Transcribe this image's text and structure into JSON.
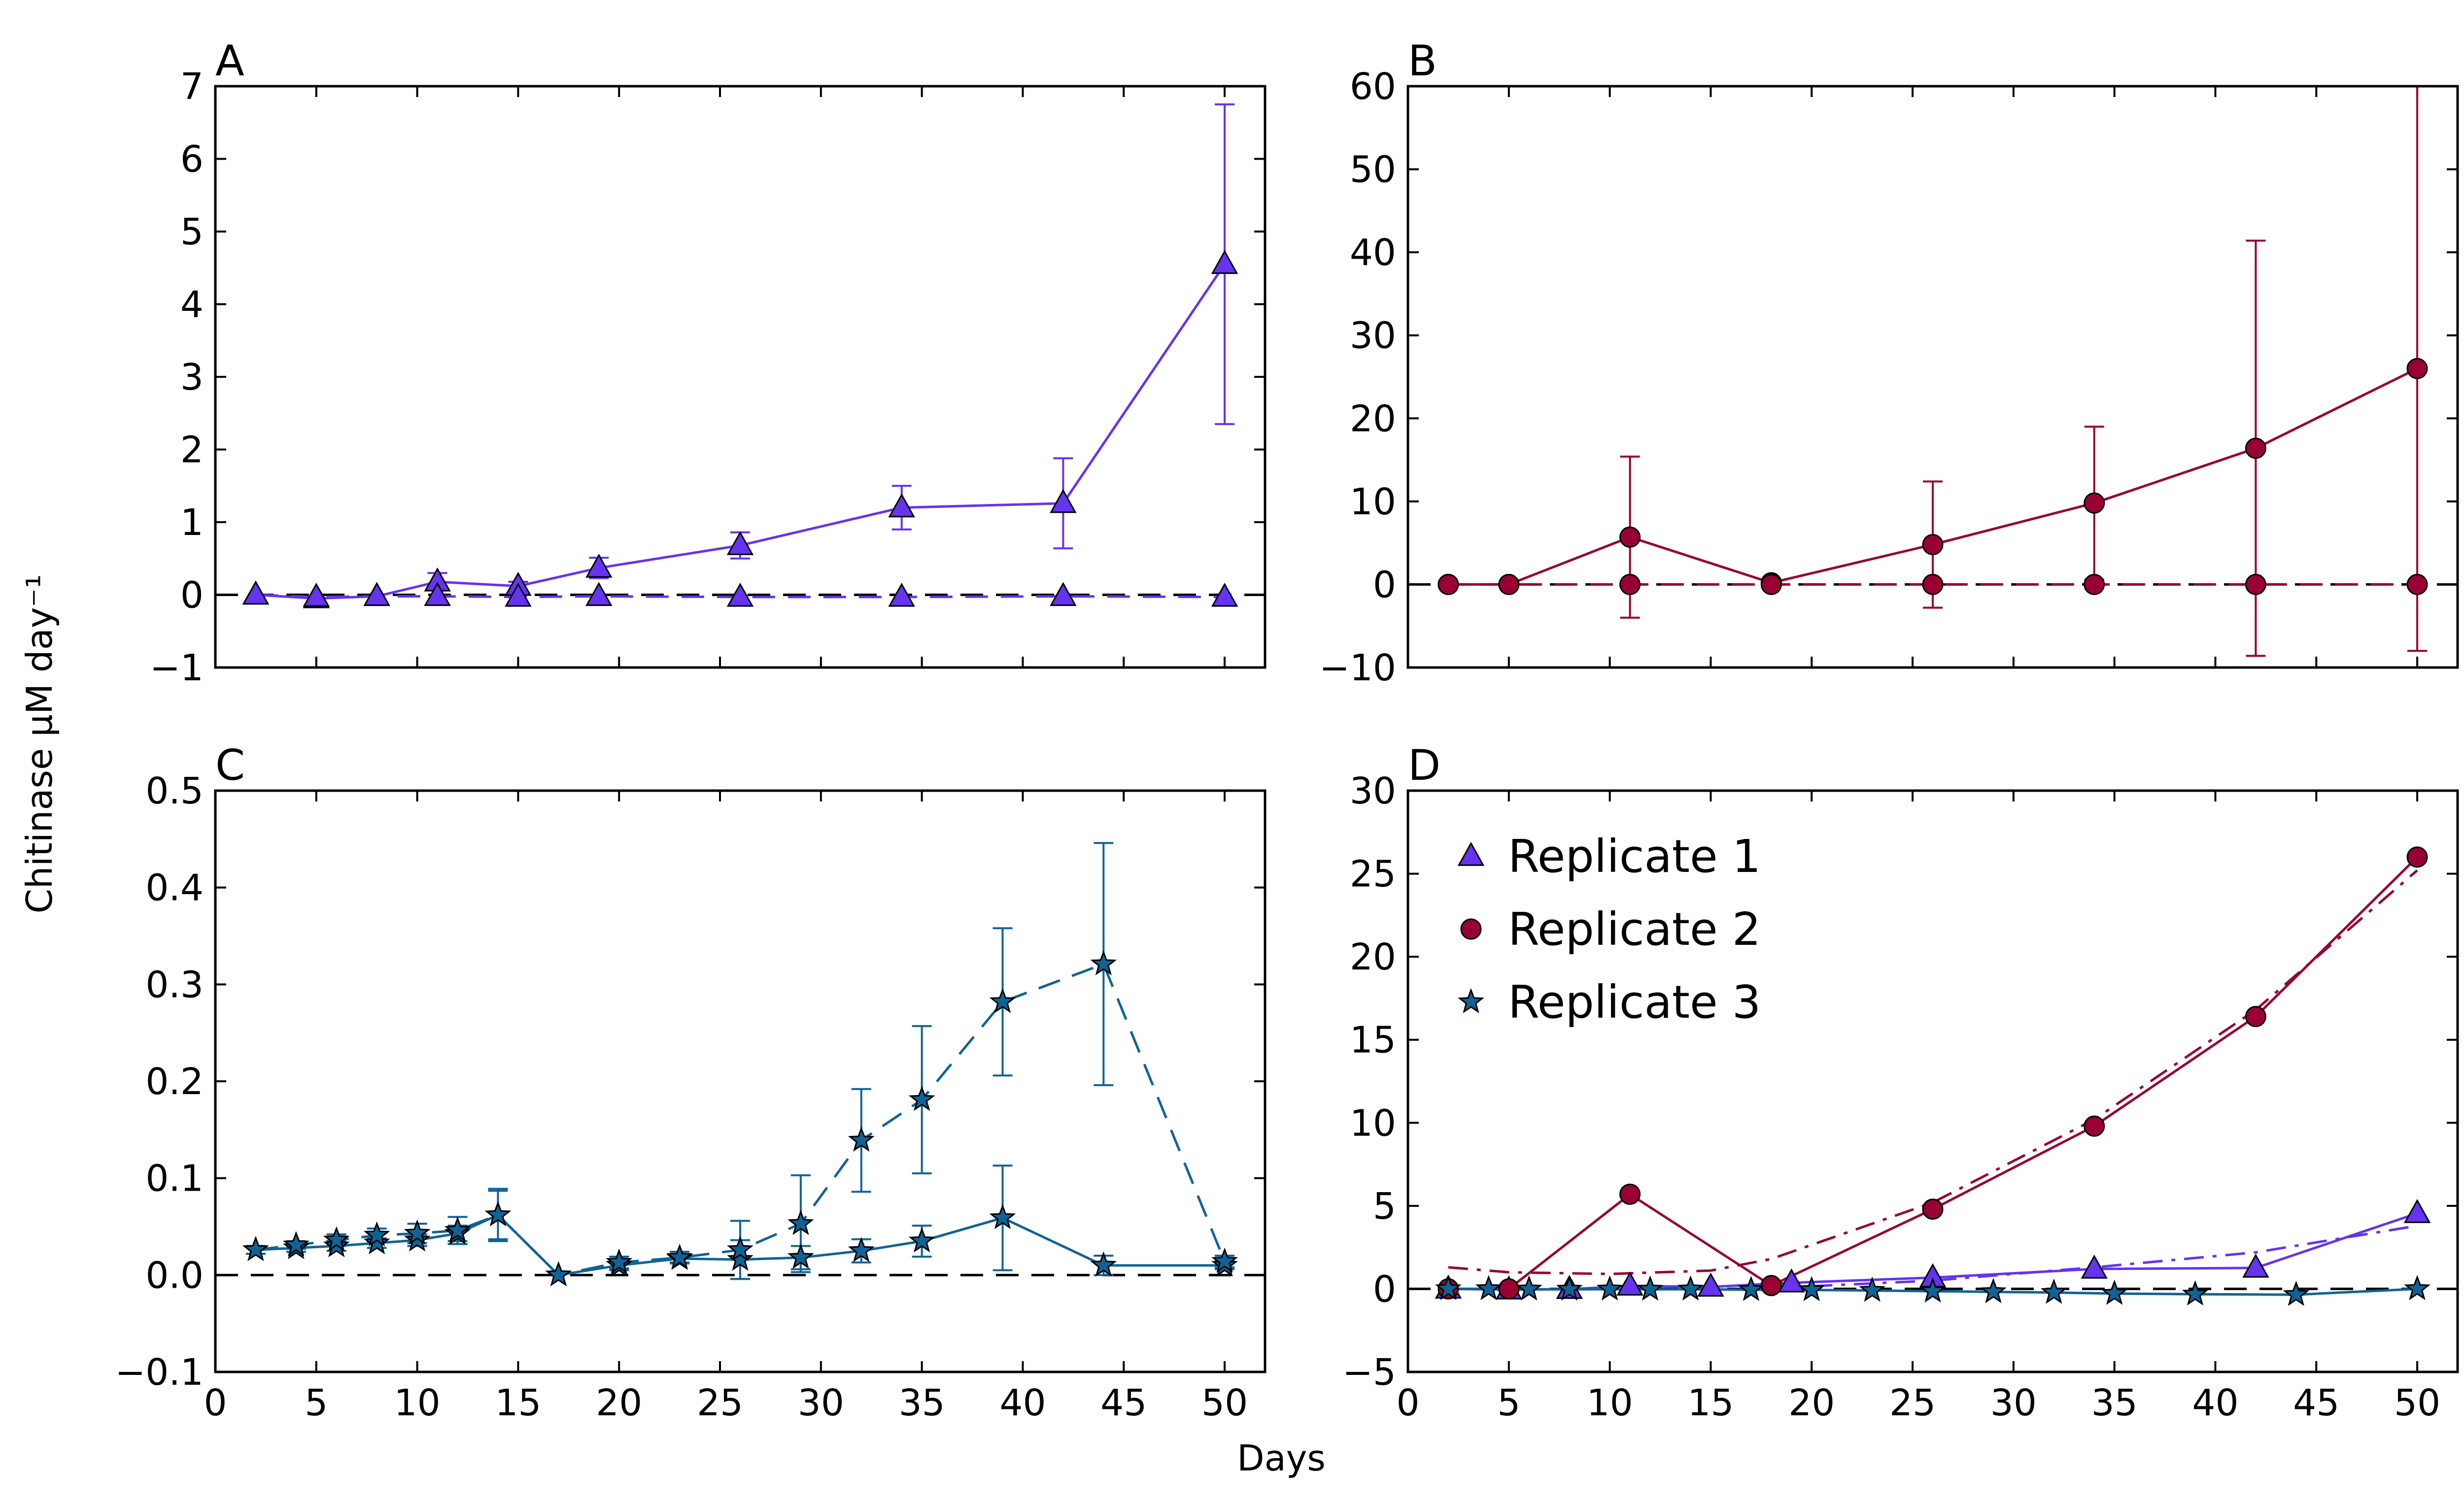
{
  "figure": {
    "ylabel": "Chitinase μM day⁻¹",
    "xlabel": "Days"
  },
  "colors": {
    "replicate_1": "#6633EE",
    "replicate_2": "#990033",
    "replicate_3": "#0F6396",
    "zero_line": "#000000"
  },
  "legend": {
    "items": [
      {
        "label": "Replicate 1",
        "marker": "triangle",
        "color": "#6633EE"
      },
      {
        "label": "Replicate 2",
        "marker": "circle",
        "color": "#990033"
      },
      {
        "label": "Replicate 3",
        "marker": "star",
        "color": "#0F6396"
      }
    ]
  },
  "chart_data": [
    {
      "panel": "A",
      "type": "line",
      "xlim": [
        0,
        52
      ],
      "ylim": [
        -1,
        7
      ],
      "yticks": [
        "−1",
        "0",
        "1",
        "2",
        "3",
        "4",
        "5",
        "6",
        "7"
      ],
      "yticks_values": [
        -1,
        0,
        1,
        2,
        3,
        4,
        5,
        6,
        7
      ],
      "show_xticklabels": false,
      "zero_line": true,
      "series": [
        {
          "style": "solid",
          "marker": "triangle",
          "color": "#6633EE",
          "x": [
            2,
            5,
            8,
            11,
            15,
            19,
            26,
            34,
            42,
            50
          ],
          "y": [
            0.0,
            -0.05,
            -0.02,
            0.18,
            0.12,
            0.37,
            0.68,
            1.2,
            1.26,
            4.55
          ],
          "err": [
            0,
            0,
            0,
            0.12,
            0.06,
            0.14,
            0.18,
            0.3,
            0.62,
            2.2
          ]
        },
        {
          "style": "dashed",
          "marker": "triangle",
          "color": "#6633EE",
          "x": [
            2,
            5,
            8,
            11,
            15,
            19,
            26,
            34,
            42,
            50
          ],
          "y": [
            0.0,
            -0.03,
            -0.02,
            -0.02,
            -0.03,
            -0.02,
            -0.03,
            -0.03,
            -0.02,
            -0.03
          ],
          "err": [
            0,
            0,
            0,
            0,
            0,
            0,
            0,
            0,
            0,
            0
          ]
        }
      ]
    },
    {
      "panel": "B",
      "type": "line",
      "xlim": [
        0,
        52
      ],
      "ylim": [
        -10,
        60
      ],
      "yticks": [
        "−10",
        "0",
        "10",
        "20",
        "30",
        "40",
        "50",
        "60"
      ],
      "yticks_values": [
        -10,
        0,
        10,
        20,
        30,
        40,
        50,
        60
      ],
      "show_xticklabels": false,
      "zero_line": true,
      "series": [
        {
          "style": "solid",
          "marker": "circle",
          "color": "#990033",
          "x": [
            2,
            5,
            11,
            18,
            26,
            34,
            42,
            50
          ],
          "y": [
            0.0,
            0.0,
            5.7,
            0.2,
            4.8,
            9.8,
            16.4,
            26.0
          ],
          "err": [
            0,
            0,
            9.7,
            0,
            7.6,
            9.2,
            25.0,
            34.0
          ]
        },
        {
          "style": "dashed",
          "marker": "circle",
          "color": "#990033",
          "x": [
            2,
            5,
            11,
            18,
            26,
            34,
            42,
            50
          ],
          "y": [
            0.0,
            0.0,
            0.0,
            0.0,
            0.0,
            0.0,
            0.0,
            0.0
          ],
          "err": [
            0,
            0,
            0,
            0,
            0,
            0,
            0,
            0
          ]
        }
      ]
    },
    {
      "panel": "C",
      "type": "line",
      "xlim": [
        0,
        52
      ],
      "ylim": [
        -0.1,
        0.5
      ],
      "yticks": [
        "−0.1",
        "0.0",
        "0.1",
        "0.2",
        "0.3",
        "0.4",
        "0.5"
      ],
      "yticks_values": [
        -0.1,
        0.0,
        0.1,
        0.2,
        0.3,
        0.4,
        0.5
      ],
      "xticks": [
        "0",
        "5",
        "10",
        "15",
        "20",
        "25",
        "30",
        "35",
        "40",
        "45",
        "50"
      ],
      "xticks_values": [
        0,
        5,
        10,
        15,
        20,
        25,
        30,
        35,
        40,
        45,
        50
      ],
      "show_xticklabels": true,
      "zero_line": true,
      "series": [
        {
          "style": "solid",
          "marker": "star",
          "color": "#0F6396",
          "x": [
            2,
            4,
            6,
            8,
            10,
            12,
            14,
            17,
            20,
            23,
            26,
            29,
            32,
            35,
            39,
            44,
            50
          ],
          "y": [
            0.026,
            0.028,
            0.03,
            0.033,
            0.036,
            0.043,
            0.062,
            0.0,
            0.01,
            0.017,
            0.016,
            0.018,
            0.025,
            0.035,
            0.059,
            0.01,
            0.01
          ],
          "err": [
            0.004,
            0.004,
            0.005,
            0.005,
            0.006,
            0.008,
            0.025,
            0,
            0.005,
            0.004,
            0.02,
            0.012,
            0.012,
            0.016,
            0.054,
            0.01,
            0.004
          ]
        },
        {
          "style": "dashed",
          "marker": "star",
          "color": "#0F6396",
          "x": [
            2,
            4,
            6,
            8,
            10,
            12,
            14,
            17,
            20,
            23,
            26,
            29,
            32,
            35,
            39,
            44,
            50
          ],
          "y": [
            0.026,
            0.031,
            0.036,
            0.041,
            0.043,
            0.046,
            0.062,
            0.0,
            0.013,
            0.018,
            0.026,
            0.053,
            0.139,
            0.181,
            0.282,
            0.321,
            0.014
          ],
          "err": [
            0.004,
            0.004,
            0.006,
            0.007,
            0.01,
            0.014,
            0.027,
            0,
            0.006,
            0.006,
            0.03,
            0.05,
            0.053,
            0.076,
            0.076,
            0.125,
            0.006
          ]
        }
      ]
    },
    {
      "panel": "D",
      "type": "line",
      "xlim": [
        0,
        52
      ],
      "ylim": [
        -5,
        30
      ],
      "yticks": [
        "−5",
        "0",
        "5",
        "10",
        "15",
        "20",
        "25",
        "30"
      ],
      "yticks_values": [
        -5,
        0,
        5,
        10,
        15,
        20,
        25,
        30
      ],
      "xticks": [
        "0",
        "5",
        "10",
        "15",
        "20",
        "25",
        "30",
        "35",
        "40",
        "45",
        "50"
      ],
      "xticks_values": [
        0,
        5,
        10,
        15,
        20,
        25,
        30,
        35,
        40,
        45,
        50
      ],
      "show_xticklabels": true,
      "zero_line": true,
      "legend": "upper-left",
      "series": [
        {
          "name": "Replicate 1",
          "style": "solid",
          "marker": "triangle",
          "color": "#6633EE",
          "x": [
            2,
            5,
            8,
            11,
            15,
            19,
            26,
            34,
            42,
            50
          ],
          "y": [
            0.0,
            -0.05,
            -0.02,
            0.18,
            0.12,
            0.37,
            0.68,
            1.2,
            1.26,
            4.55
          ]
        },
        {
          "style": "dashdot",
          "marker": "none",
          "color": "#6633EE",
          "x": [
            18,
            26,
            34,
            42,
            50
          ],
          "y": [
            0.05,
            0.5,
            1.3,
            2.2,
            3.8
          ]
        },
        {
          "name": "Replicate 2",
          "style": "solid",
          "marker": "circle",
          "color": "#990033",
          "x": [
            2,
            5,
            11,
            18,
            26,
            34,
            42,
            50
          ],
          "y": [
            0.0,
            0.0,
            5.7,
            0.2,
            4.8,
            9.8,
            16.4,
            26.0
          ]
        },
        {
          "style": "dashdot",
          "marker": "none",
          "color": "#990033",
          "x": [
            2,
            5,
            10,
            15,
            18,
            26,
            34,
            42,
            50
          ],
          "y": [
            1.3,
            1.0,
            0.9,
            1.1,
            1.8,
            5.2,
            10.2,
            16.8,
            25.2
          ]
        },
        {
          "name": "Replicate 3",
          "style": "solid",
          "marker": "star",
          "color": "#0F6396",
          "x": [
            2,
            4,
            6,
            8,
            10,
            12,
            14,
            17,
            20,
            23,
            26,
            29,
            32,
            35,
            39,
            44,
            50
          ],
          "y": [
            0.0,
            0.0,
            -0.02,
            -0.03,
            -0.02,
            -0.03,
            -0.02,
            -0.05,
            -0.06,
            -0.1,
            -0.14,
            -0.18,
            -0.22,
            -0.28,
            -0.32,
            -0.35,
            0.0
          ]
        }
      ]
    }
  ]
}
